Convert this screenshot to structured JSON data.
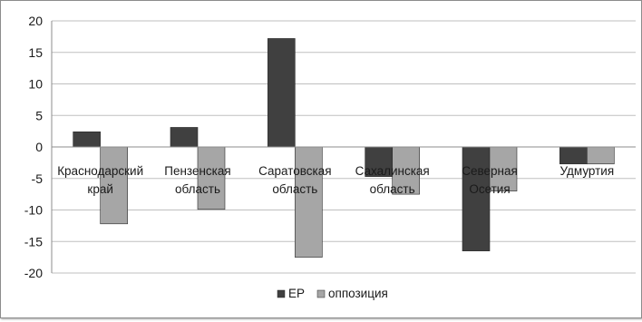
{
  "chart_data": {
    "type": "bar",
    "title": "",
    "xlabel": "",
    "ylabel": "",
    "ylim": [
      -20,
      20
    ],
    "ytick_step": 5,
    "yticks": [
      "20",
      "15",
      "10",
      "5",
      "0",
      "-5",
      "-10",
      "-15",
      "-20"
    ],
    "grid": true,
    "legend_position": "bottom",
    "categories": [
      [
        "Краснодарский",
        "край"
      ],
      [
        "Пензенская",
        "область"
      ],
      [
        "Саратовская",
        "область"
      ],
      [
        "Сахалинская",
        "область"
      ],
      [
        "Северная",
        "Осетия"
      ],
      [
        "Удмуртия"
      ]
    ],
    "series": [
      {
        "name": "ЕР",
        "color": "#404040",
        "values": [
          2.4,
          3.1,
          17.2,
          -4.7,
          -16.5,
          -2.7
        ]
      },
      {
        "name": "оппозиция",
        "color": "#a6a6a6",
        "values": [
          -12.2,
          -9.9,
          -17.5,
          -7.5,
          -7.0,
          -2.7
        ]
      }
    ]
  }
}
